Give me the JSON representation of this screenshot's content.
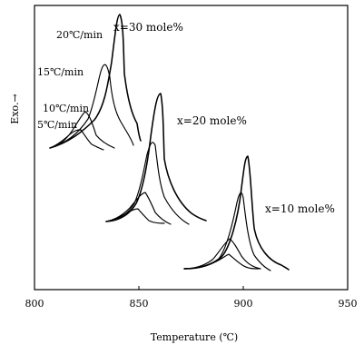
{
  "chart_data": {
    "type": "line",
    "xlabel": "Temperature (℃)",
    "ylabel": "Exo.→",
    "xlim": [
      800,
      950
    ],
    "xticks": [
      800,
      850,
      900,
      950
    ],
    "grid": false,
    "groups": [
      {
        "label": "x=30 mole%",
        "rates": [
          "20℃/min",
          "15℃/min",
          "10℃/min",
          "5℃/min"
        ],
        "peaks": [
          835,
          832,
          829,
          823
        ]
      },
      {
        "label": "x=20 mole%",
        "peaks": [
          862,
          860,
          856,
          851
        ]
      },
      {
        "label": "x=10 mole%",
        "peaks": [
          901,
          899,
          896,
          891
        ]
      }
    ]
  }
}
